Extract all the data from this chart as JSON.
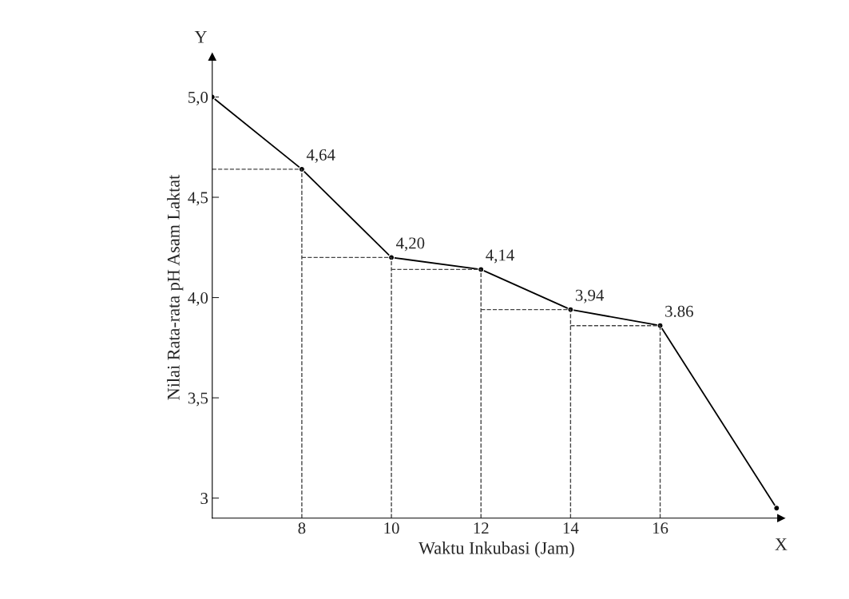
{
  "chart_data": {
    "type": "line",
    "xlabel": "Waktu Inkubasi (Jam)",
    "ylabel": "Nilai Rata-rata pH Asam Laktat",
    "x": [
      6,
      8,
      10,
      12,
      14,
      16,
      18.6
    ],
    "series": [
      {
        "color": "#000000",
        "values": [
          5.0,
          4.64,
          4.2,
          4.14,
          3.94,
          3.86,
          2.95
        ],
        "value_labels": [
          null,
          "4,64",
          "4,20",
          "4,14",
          "3,94",
          "3.86",
          null
        ]
      }
    ],
    "xlim": [
      6,
      18.7
    ],
    "ylim": [
      2.9,
      5.2
    ],
    "xticks": [
      8,
      10,
      12,
      14,
      16
    ],
    "yticks": [
      3,
      {
        "value": 3.5,
        "label": "3,5"
      },
      {
        "value": 4.0,
        "label": "4,0"
      },
      {
        "value": 4.5,
        "label": "4,5"
      },
      {
        "value": 5.0,
        "label": "5,0"
      }
    ],
    "annotations": [
      "Y",
      "X"
    ],
    "marker": "circle",
    "line_style": "solid",
    "grid": "x",
    "legend": false
  }
}
